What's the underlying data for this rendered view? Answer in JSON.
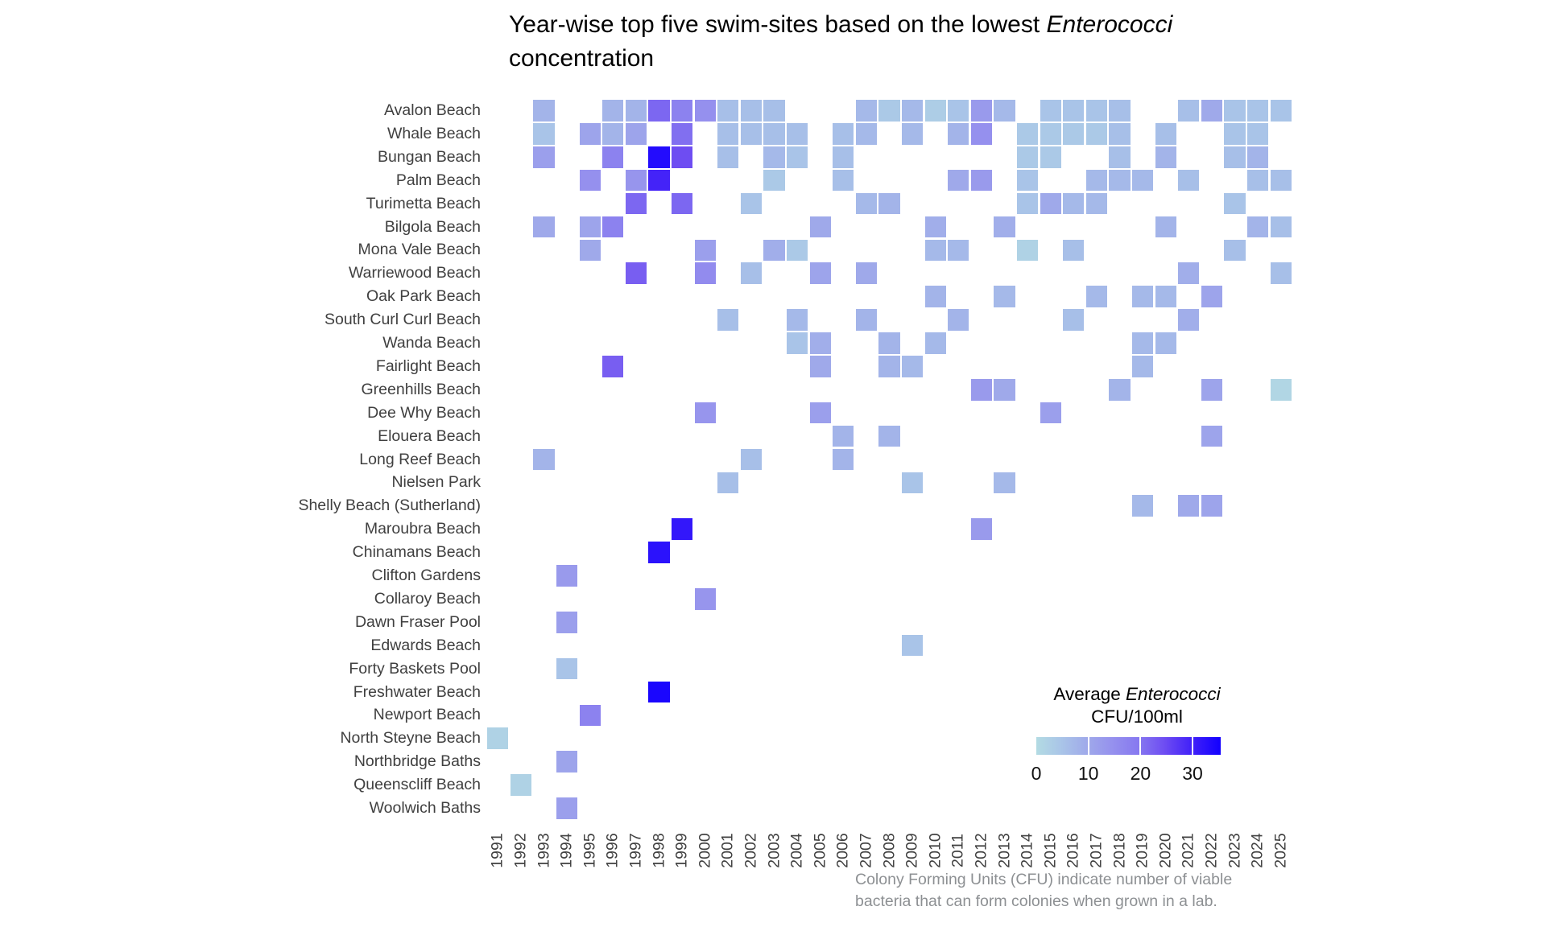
{
  "title": {
    "text_before_italic": "Year-wise top five swim-sites based on the lowest ",
    "italic": "Enterococci",
    "line2": "concentration"
  },
  "legend": {
    "title_before_italic": "Average ",
    "title_italic": "Enterococci",
    "title_line2": "CFU/100ml",
    "tick_values": [
      0,
      10,
      20,
      30
    ]
  },
  "caption": {
    "line1": "Colony Forming Units (CFU) indicate number of viable",
    "line2": "bacteria that can form colonies when grown in a lab."
  },
  "chart_data": {
    "type": "heatmap",
    "title": "Year-wise top five swim-sites based on the lowest Enterococci concentration",
    "xlabel": "",
    "ylabel": "",
    "value_label": "Average Enterococci CFU/100ml",
    "x_years": [
      1991,
      1992,
      1993,
      1994,
      1995,
      1996,
      1997,
      1998,
      1999,
      2000,
      2001,
      2002,
      2003,
      2004,
      2005,
      2006,
      2007,
      2008,
      2009,
      2010,
      2011,
      2012,
      2013,
      2014,
      2015,
      2016,
      2017,
      2018,
      2019,
      2020,
      2021,
      2022,
      2023,
      2024,
      2025
    ],
    "y_sites": [
      "Avalon Beach",
      "Whale Beach",
      "Bungan Beach",
      "Palm Beach",
      "Turimetta Beach",
      "Bilgola Beach",
      "Mona Vale Beach",
      "Warriewood Beach",
      "Oak Park Beach",
      "South Curl Curl Beach",
      "Wanda Beach",
      "Fairlight Beach",
      "Greenhills Beach",
      "Dee Why Beach",
      "Elouera Beach",
      "Long Reef Beach",
      "Nielsen Park",
      "Shelly Beach (Sutherland)",
      "Maroubra Beach",
      "Chinamans Beach",
      "Clifton Gardens",
      "Collaroy Beach",
      "Dawn Fraser Pool",
      "Edwards Beach",
      "Forty Baskets Pool",
      "Freshwater Beach",
      "Newport Beach",
      "North Steyne Beach",
      "Northbridge Baths",
      "Queenscliff Beach",
      "Woolwich Baths"
    ],
    "color_scale": {
      "min": 0,
      "max": 36,
      "stops": [
        [
          0,
          "#b3dbe3"
        ],
        [
          5,
          "#a9c4e8"
        ],
        [
          10,
          "#9fa9ea"
        ],
        [
          15,
          "#9590ee"
        ],
        [
          20,
          "#8678f0"
        ],
        [
          25,
          "#6e4df2"
        ],
        [
          30,
          "#4423f8"
        ],
        [
          36,
          "#1200ff"
        ]
      ]
    },
    "cells_by_year": {
      "1991": [
        [
          "North Steyne Beach",
          2
        ]
      ],
      "1992": [
        [
          "Queenscliff Beach",
          2
        ]
      ],
      "1993": [
        [
          "Avalon Beach",
          8
        ],
        [
          "Whale Beach",
          5
        ],
        [
          "Bungan Beach",
          12
        ],
        [
          "Bilgola Beach",
          10
        ],
        [
          "Long Reef Beach",
          8
        ]
      ],
      "1994": [
        [
          "Clifton Gardens",
          13
        ],
        [
          "Dawn Fraser Pool",
          12
        ],
        [
          "Forty Baskets Pool",
          5
        ],
        [
          "Northbridge Baths",
          11
        ],
        [
          "Woolwich Baths",
          12
        ]
      ],
      "1995": [
        [
          "Whale Beach",
          11
        ],
        [
          "Palm Beach",
          15
        ],
        [
          "Bilgola Beach",
          11
        ],
        [
          "Mona Vale Beach",
          10
        ],
        [
          "Newport Beach",
          18
        ]
      ],
      "1996": [
        [
          "Avalon Beach",
          8
        ],
        [
          "Whale Beach",
          8
        ],
        [
          "Bungan Beach",
          18
        ],
        [
          "Bilgola Beach",
          18
        ],
        [
          "Fairlight Beach",
          23
        ]
      ],
      "1997": [
        [
          "Avalon Beach",
          8
        ],
        [
          "Whale Beach",
          11
        ],
        [
          "Palm Beach",
          14
        ],
        [
          "Turimetta Beach",
          22
        ],
        [
          "Warriewood Beach",
          23
        ]
      ],
      "1998": [
        [
          "Avalon Beach",
          22
        ],
        [
          "Bungan Beach",
          34
        ],
        [
          "Palm Beach",
          30
        ],
        [
          "Chinamans Beach",
          33
        ],
        [
          "Freshwater Beach",
          35
        ]
      ],
      "1999": [
        [
          "Avalon Beach",
          18
        ],
        [
          "Whale Beach",
          21
        ],
        [
          "Bungan Beach",
          25
        ],
        [
          "Turimetta Beach",
          22
        ],
        [
          "Maroubra Beach",
          32
        ]
      ],
      "2000": [
        [
          "Avalon Beach",
          15
        ],
        [
          "Mona Vale Beach",
          12
        ],
        [
          "Warriewood Beach",
          16
        ],
        [
          "Dee Why Beach",
          14
        ],
        [
          "Collaroy Beach",
          14
        ]
      ],
      "2001": [
        [
          "Avalon Beach",
          6
        ],
        [
          "Whale Beach",
          6
        ],
        [
          "Bungan Beach",
          6
        ],
        [
          "South Curl Curl Beach",
          6
        ],
        [
          "Nielsen Park",
          6
        ]
      ],
      "2002": [
        [
          "Avalon Beach",
          6
        ],
        [
          "Whale Beach",
          6
        ],
        [
          "Turimetta Beach",
          5
        ],
        [
          "Warriewood Beach",
          6
        ],
        [
          "Long Reef Beach",
          6
        ]
      ],
      "2003": [
        [
          "Avalon Beach",
          6
        ],
        [
          "Whale Beach",
          6
        ],
        [
          "Bungan Beach",
          7
        ],
        [
          "Palm Beach",
          4
        ],
        [
          "Mona Vale Beach",
          9
        ]
      ],
      "2004": [
        [
          "Whale Beach",
          6
        ],
        [
          "Bungan Beach",
          5
        ],
        [
          "Mona Vale Beach",
          4
        ],
        [
          "South Curl Curl Beach",
          7
        ],
        [
          "Wanda Beach",
          5
        ]
      ],
      "2005": [
        [
          "Bilgola Beach",
          10
        ],
        [
          "Warriewood Beach",
          11
        ],
        [
          "Wanda Beach",
          9
        ],
        [
          "Fairlight Beach",
          10
        ],
        [
          "Dee Why Beach",
          12
        ]
      ],
      "2006": [
        [
          "Whale Beach",
          6
        ],
        [
          "Bungan Beach",
          6
        ],
        [
          "Palm Beach",
          6
        ],
        [
          "Elouera Beach",
          8
        ],
        [
          "Long Reef Beach",
          8
        ]
      ],
      "2007": [
        [
          "Avalon Beach",
          7
        ],
        [
          "Whale Beach",
          7
        ],
        [
          "Turimetta Beach",
          7
        ],
        [
          "Warriewood Beach",
          10
        ],
        [
          "South Curl Curl Beach",
          8
        ]
      ],
      "2008": [
        [
          "Avalon Beach",
          4
        ],
        [
          "Turimetta Beach",
          8
        ],
        [
          "Wanda Beach",
          8
        ],
        [
          "Fairlight Beach",
          8
        ],
        [
          "Elouera Beach",
          8
        ]
      ],
      "2009": [
        [
          "Avalon Beach",
          7
        ],
        [
          "Whale Beach",
          7
        ],
        [
          "Fairlight Beach",
          7
        ],
        [
          "Nielsen Park",
          5
        ],
        [
          "Edwards Beach",
          5
        ]
      ],
      "2010": [
        [
          "Avalon Beach",
          3
        ],
        [
          "Bilgola Beach",
          9
        ],
        [
          "Mona Vale Beach",
          7
        ],
        [
          "Oak Park Beach",
          8
        ],
        [
          "Wanda Beach",
          7
        ]
      ],
      "2011": [
        [
          "Avalon Beach",
          5
        ],
        [
          "Whale Beach",
          8
        ],
        [
          "Palm Beach",
          10
        ],
        [
          "Mona Vale Beach",
          7
        ],
        [
          "South Curl Curl Beach",
          8
        ]
      ],
      "2012": [
        [
          "Avalon Beach",
          13
        ],
        [
          "Whale Beach",
          15
        ],
        [
          "Palm Beach",
          13
        ],
        [
          "Greenhills Beach",
          13
        ],
        [
          "Maroubra Beach",
          13
        ]
      ],
      "2013": [
        [
          "Avalon Beach",
          7
        ],
        [
          "Bilgola Beach",
          9
        ],
        [
          "Oak Park Beach",
          7
        ],
        [
          "Greenhills Beach",
          10
        ],
        [
          "Nielsen Park",
          7
        ]
      ],
      "2014": [
        [
          "Whale Beach",
          4
        ],
        [
          "Bungan Beach",
          4
        ],
        [
          "Palm Beach",
          5
        ],
        [
          "Turimetta Beach",
          5
        ],
        [
          "Mona Vale Beach",
          2
        ]
      ],
      "2015": [
        [
          "Avalon Beach",
          5
        ],
        [
          "Whale Beach",
          4
        ],
        [
          "Bungan Beach",
          4
        ],
        [
          "Turimetta Beach",
          10
        ],
        [
          "Dee Why Beach",
          12
        ]
      ],
      "2016": [
        [
          "Avalon Beach",
          5
        ],
        [
          "Whale Beach",
          4
        ],
        [
          "Turimetta Beach",
          7
        ],
        [
          "Mona Vale Beach",
          6
        ],
        [
          "South Curl Curl Beach",
          6
        ]
      ],
      "2017": [
        [
          "Avalon Beach",
          5
        ],
        [
          "Whale Beach",
          4
        ],
        [
          "Palm Beach",
          7
        ],
        [
          "Turimetta Beach",
          7
        ],
        [
          "Oak Park Beach",
          7
        ]
      ],
      "2018": [
        [
          "Avalon Beach",
          6
        ],
        [
          "Whale Beach",
          6
        ],
        [
          "Bungan Beach",
          6
        ],
        [
          "Palm Beach",
          7
        ],
        [
          "Greenhills Beach",
          8
        ]
      ],
      "2019": [
        [
          "Palm Beach",
          7
        ],
        [
          "Oak Park Beach",
          7
        ],
        [
          "Wanda Beach",
          7
        ],
        [
          "Fairlight Beach",
          7
        ],
        [
          "Shelly Beach (Sutherland)",
          7
        ]
      ],
      "2020": [
        [
          "Whale Beach",
          6
        ],
        [
          "Bungan Beach",
          8
        ],
        [
          "Bilgola Beach",
          8
        ],
        [
          "Oak Park Beach",
          7
        ],
        [
          "Wanda Beach",
          7
        ]
      ],
      "2021": [
        [
          "Avalon Beach",
          6
        ],
        [
          "Palm Beach",
          6
        ],
        [
          "Warriewood Beach",
          9
        ],
        [
          "South Curl Curl Beach",
          9
        ],
        [
          "Shelly Beach (Sutherland)",
          10
        ]
      ],
      "2022": [
        [
          "Avalon Beach",
          10
        ],
        [
          "Oak Park Beach",
          11
        ],
        [
          "Greenhills Beach",
          11
        ],
        [
          "Elouera Beach",
          11
        ],
        [
          "Shelly Beach (Sutherland)",
          11
        ]
      ],
      "2023": [
        [
          "Avalon Beach",
          5
        ],
        [
          "Whale Beach",
          5
        ],
        [
          "Bungan Beach",
          6
        ],
        [
          "Turimetta Beach",
          5
        ],
        [
          "Mona Vale Beach",
          6
        ]
      ],
      "2024": [
        [
          "Avalon Beach",
          5
        ],
        [
          "Whale Beach",
          5
        ],
        [
          "Bungan Beach",
          8
        ],
        [
          "Palm Beach",
          6
        ],
        [
          "Bilgola Beach",
          8
        ]
      ],
      "2025": [
        [
          "Avalon Beach",
          5
        ],
        [
          "Palm Beach",
          6
        ],
        [
          "Bilgola Beach",
          6
        ],
        [
          "Warriewood Beach",
          6
        ],
        [
          "Greenhills Beach",
          1
        ]
      ]
    },
    "layout": {
      "legend_position": "bottom-right-inside",
      "grid": "off"
    }
  }
}
